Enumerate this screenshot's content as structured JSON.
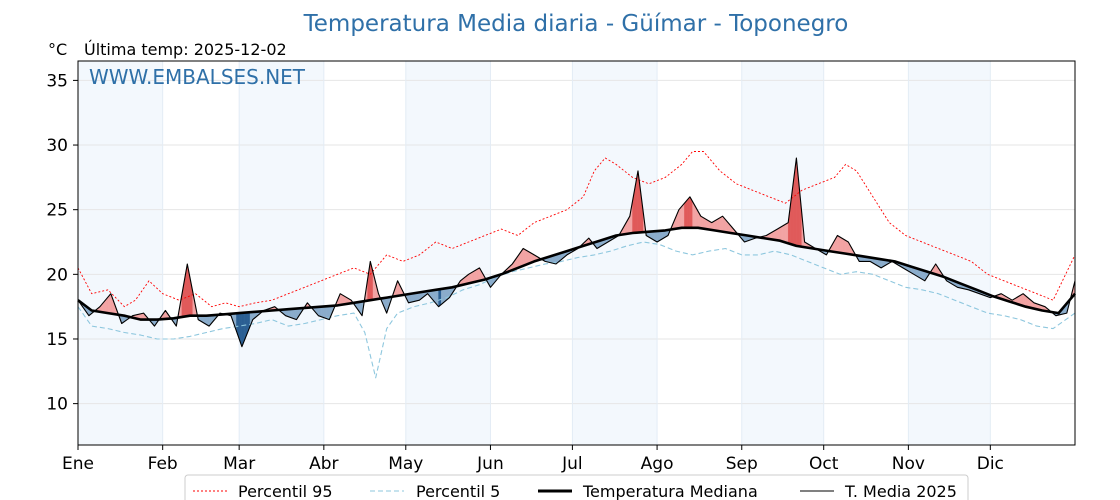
{
  "chart_data": {
    "type": "line",
    "title": "Temperatura Media diaria - Güímar - Toponegro",
    "unit_label": "°C",
    "last_update": "Última temp: 2025-12-02",
    "watermark": "WWW.EMBALSES.NET",
    "ylim": [
      6.8,
      36.5
    ],
    "yticks": [
      10,
      15,
      20,
      25,
      30,
      35
    ],
    "xlim": [
      1,
      366
    ],
    "months": [
      {
        "label": "Ene",
        "day": 1
      },
      {
        "label": "Feb",
        "day": 32
      },
      {
        "label": "Mar",
        "day": 60
      },
      {
        "label": "Abr",
        "day": 91
      },
      {
        "label": "May",
        "day": 121
      },
      {
        "label": "Jun",
        "day": 152
      },
      {
        "label": "Jul",
        "day": 182
      },
      {
        "label": "Ago",
        "day": 213
      },
      {
        "label": "Sep",
        "day": 244
      },
      {
        "label": "Oct",
        "day": 274
      },
      {
        "label": "Nov",
        "day": 305
      },
      {
        "label": "Dic",
        "day": 335
      }
    ],
    "legend_position": "bottom",
    "series": [
      {
        "name": "Percentil 95",
        "color": "#ff0000",
        "style": "dotted",
        "points": [
          [
            1,
            20.5
          ],
          [
            6,
            18.5
          ],
          [
            12,
            18.8
          ],
          [
            18,
            17.5
          ],
          [
            22,
            18.0
          ],
          [
            27,
            19.5
          ],
          [
            32,
            18.5
          ],
          [
            38,
            18.0
          ],
          [
            44,
            18.5
          ],
          [
            50,
            17.5
          ],
          [
            55,
            17.8
          ],
          [
            60,
            17.5
          ],
          [
            66,
            17.8
          ],
          [
            72,
            18.0
          ],
          [
            78,
            18.5
          ],
          [
            84,
            19.0
          ],
          [
            90,
            19.5
          ],
          [
            96,
            20.0
          ],
          [
            102,
            20.5
          ],
          [
            108,
            20.0
          ],
          [
            114,
            21.5
          ],
          [
            120,
            21.0
          ],
          [
            126,
            21.5
          ],
          [
            132,
            22.5
          ],
          [
            138,
            22.0
          ],
          [
            144,
            22.5
          ],
          [
            150,
            23.0
          ],
          [
            156,
            23.5
          ],
          [
            162,
            23.0
          ],
          [
            168,
            24.0
          ],
          [
            174,
            24.5
          ],
          [
            180,
            25.0
          ],
          [
            186,
            26.0
          ],
          [
            190,
            28.0
          ],
          [
            194,
            29.0
          ],
          [
            198,
            28.5
          ],
          [
            204,
            27.5
          ],
          [
            210,
            27.0
          ],
          [
            216,
            27.5
          ],
          [
            222,
            28.5
          ],
          [
            226,
            29.5
          ],
          [
            230,
            29.5
          ],
          [
            236,
            28.0
          ],
          [
            242,
            27.0
          ],
          [
            248,
            26.5
          ],
          [
            254,
            26.0
          ],
          [
            260,
            25.5
          ],
          [
            266,
            26.5
          ],
          [
            272,
            27.0
          ],
          [
            278,
            27.5
          ],
          [
            282,
            28.5
          ],
          [
            286,
            28.0
          ],
          [
            292,
            26.0
          ],
          [
            298,
            24.0
          ],
          [
            304,
            23.0
          ],
          [
            310,
            22.5
          ],
          [
            316,
            22.0
          ],
          [
            322,
            21.5
          ],
          [
            328,
            21.0
          ],
          [
            334,
            20.0
          ],
          [
            340,
            19.5
          ],
          [
            346,
            19.0
          ],
          [
            352,
            18.5
          ],
          [
            358,
            18.0
          ],
          [
            366,
            21.5
          ]
        ]
      },
      {
        "name": "Percentil 5",
        "color": "#8ec7de",
        "style": "dashed",
        "points": [
          [
            1,
            17.5
          ],
          [
            6,
            16.0
          ],
          [
            12,
            15.8
          ],
          [
            18,
            15.5
          ],
          [
            24,
            15.3
          ],
          [
            30,
            15.0
          ],
          [
            36,
            15.0
          ],
          [
            42,
            15.2
          ],
          [
            48,
            15.5
          ],
          [
            54,
            15.8
          ],
          [
            60,
            16.0
          ],
          [
            66,
            16.2
          ],
          [
            72,
            16.5
          ],
          [
            78,
            16.0
          ],
          [
            84,
            16.2
          ],
          [
            90,
            16.5
          ],
          [
            96,
            16.8
          ],
          [
            102,
            17.0
          ],
          [
            106,
            15.5
          ],
          [
            110,
            12.0
          ],
          [
            114,
            15.8
          ],
          [
            118,
            17.0
          ],
          [
            124,
            17.5
          ],
          [
            130,
            17.8
          ],
          [
            136,
            18.2
          ],
          [
            142,
            18.8
          ],
          [
            148,
            19.2
          ],
          [
            154,
            19.8
          ],
          [
            160,
            20.2
          ],
          [
            166,
            20.5
          ],
          [
            172,
            20.8
          ],
          [
            178,
            21.0
          ],
          [
            184,
            21.3
          ],
          [
            190,
            21.5
          ],
          [
            196,
            21.8
          ],
          [
            202,
            22.2
          ],
          [
            208,
            22.5
          ],
          [
            214,
            22.3
          ],
          [
            220,
            21.8
          ],
          [
            226,
            21.5
          ],
          [
            232,
            21.8
          ],
          [
            238,
            22.0
          ],
          [
            244,
            21.5
          ],
          [
            250,
            21.5
          ],
          [
            256,
            21.8
          ],
          [
            262,
            21.5
          ],
          [
            268,
            21.0
          ],
          [
            274,
            20.5
          ],
          [
            280,
            20.0
          ],
          [
            286,
            20.2
          ],
          [
            292,
            20.0
          ],
          [
            298,
            19.5
          ],
          [
            304,
            19.0
          ],
          [
            310,
            18.8
          ],
          [
            316,
            18.5
          ],
          [
            322,
            18.0
          ],
          [
            328,
            17.5
          ],
          [
            334,
            17.0
          ],
          [
            340,
            16.8
          ],
          [
            346,
            16.5
          ],
          [
            352,
            16.0
          ],
          [
            358,
            15.8
          ],
          [
            366,
            17.0
          ]
        ]
      },
      {
        "name": "Temperatura Mediana",
        "color": "#000000",
        "style": "thick",
        "points": [
          [
            1,
            18.0
          ],
          [
            6,
            17.2
          ],
          [
            12,
            17.0
          ],
          [
            18,
            16.8
          ],
          [
            24,
            16.5
          ],
          [
            30,
            16.5
          ],
          [
            36,
            16.6
          ],
          [
            42,
            16.8
          ],
          [
            48,
            16.8
          ],
          [
            54,
            16.9
          ],
          [
            60,
            17.0
          ],
          [
            66,
            17.1
          ],
          [
            72,
            17.2
          ],
          [
            78,
            17.3
          ],
          [
            84,
            17.4
          ],
          [
            90,
            17.5
          ],
          [
            96,
            17.6
          ],
          [
            102,
            17.8
          ],
          [
            108,
            18.0
          ],
          [
            114,
            18.2
          ],
          [
            120,
            18.4
          ],
          [
            126,
            18.6
          ],
          [
            132,
            18.8
          ],
          [
            138,
            19.0
          ],
          [
            144,
            19.3
          ],
          [
            150,
            19.6
          ],
          [
            156,
            20.0
          ],
          [
            162,
            20.5
          ],
          [
            168,
            21.0
          ],
          [
            174,
            21.4
          ],
          [
            180,
            21.8
          ],
          [
            186,
            22.2
          ],
          [
            192,
            22.6
          ],
          [
            198,
            23.0
          ],
          [
            204,
            23.2
          ],
          [
            210,
            23.3
          ],
          [
            216,
            23.4
          ],
          [
            222,
            23.6
          ],
          [
            228,
            23.6
          ],
          [
            234,
            23.4
          ],
          [
            240,
            23.2
          ],
          [
            246,
            23.0
          ],
          [
            252,
            22.8
          ],
          [
            258,
            22.6
          ],
          [
            264,
            22.2
          ],
          [
            270,
            22.0
          ],
          [
            276,
            21.8
          ],
          [
            282,
            21.6
          ],
          [
            288,
            21.4
          ],
          [
            294,
            21.2
          ],
          [
            300,
            21.0
          ],
          [
            306,
            20.6
          ],
          [
            312,
            20.2
          ],
          [
            318,
            19.8
          ],
          [
            324,
            19.3
          ],
          [
            330,
            18.8
          ],
          [
            336,
            18.3
          ],
          [
            342,
            17.9
          ],
          [
            348,
            17.5
          ],
          [
            354,
            17.2
          ],
          [
            360,
            17.0
          ],
          [
            366,
            18.5
          ]
        ]
      },
      {
        "name": "T. Media 2025",
        "color": "#000000",
        "style": "thin",
        "points": [
          [
            1,
            18.0
          ],
          [
            5,
            16.8
          ],
          [
            9,
            17.5
          ],
          [
            13,
            18.5
          ],
          [
            17,
            16.2
          ],
          [
            21,
            16.8
          ],
          [
            25,
            17.0
          ],
          [
            29,
            16.0
          ],
          [
            33,
            17.2
          ],
          [
            37,
            16.0
          ],
          [
            41,
            20.8
          ],
          [
            45,
            16.5
          ],
          [
            49,
            16.0
          ],
          [
            53,
            17.0
          ],
          [
            57,
            16.8
          ],
          [
            61,
            14.4
          ],
          [
            65,
            16.5
          ],
          [
            69,
            17.2
          ],
          [
            73,
            17.5
          ],
          [
            77,
            16.8
          ],
          [
            81,
            16.5
          ],
          [
            85,
            17.8
          ],
          [
            89,
            16.8
          ],
          [
            93,
            16.5
          ],
          [
            97,
            18.5
          ],
          [
            101,
            18.0
          ],
          [
            105,
            16.8
          ],
          [
            108,
            21.0
          ],
          [
            111,
            18.5
          ],
          [
            114,
            17.0
          ],
          [
            118,
            19.5
          ],
          [
            122,
            17.8
          ],
          [
            126,
            18.0
          ],
          [
            129,
            18.5
          ],
          [
            133,
            17.5
          ],
          [
            137,
            18.2
          ],
          [
            141,
            19.5
          ],
          [
            144,
            20.0
          ],
          [
            148,
            20.5
          ],
          [
            152,
            19.0
          ],
          [
            156,
            20.0
          ],
          [
            160,
            20.8
          ],
          [
            164,
            22.0
          ],
          [
            168,
            21.5
          ],
          [
            172,
            21.0
          ],
          [
            176,
            20.8
          ],
          [
            180,
            21.5
          ],
          [
            184,
            22.0
          ],
          [
            188,
            22.8
          ],
          [
            191,
            22.0
          ],
          [
            195,
            22.5
          ],
          [
            199,
            23.0
          ],
          [
            203,
            24.5
          ],
          [
            206,
            28.0
          ],
          [
            209,
            23.0
          ],
          [
            213,
            22.5
          ],
          [
            217,
            23.0
          ],
          [
            221,
            25.0
          ],
          [
            225,
            26.0
          ],
          [
            229,
            24.5
          ],
          [
            233,
            24.0
          ],
          [
            237,
            24.5
          ],
          [
            241,
            23.5
          ],
          [
            245,
            22.5
          ],
          [
            249,
            22.8
          ],
          [
            253,
            23.0
          ],
          [
            257,
            23.5
          ],
          [
            261,
            24.0
          ],
          [
            264,
            29.0
          ],
          [
            267,
            22.5
          ],
          [
            271,
            22.0
          ],
          [
            275,
            21.5
          ],
          [
            279,
            23.0
          ],
          [
            283,
            22.5
          ],
          [
            287,
            21.0
          ],
          [
            291,
            21.0
          ],
          [
            295,
            20.5
          ],
          [
            299,
            21.0
          ],
          [
            303,
            20.5
          ],
          [
            307,
            20.0
          ],
          [
            311,
            19.5
          ],
          [
            315,
            20.8
          ],
          [
            319,
            19.5
          ],
          [
            323,
            19.0
          ],
          [
            327,
            18.8
          ],
          [
            331,
            18.5
          ],
          [
            335,
            18.2
          ],
          [
            339,
            18.5
          ],
          [
            343,
            18.0
          ],
          [
            347,
            18.5
          ],
          [
            351,
            17.8
          ],
          [
            355,
            17.5
          ],
          [
            359,
            16.8
          ],
          [
            363,
            17.0
          ],
          [
            366,
            19.5
          ]
        ]
      }
    ]
  }
}
